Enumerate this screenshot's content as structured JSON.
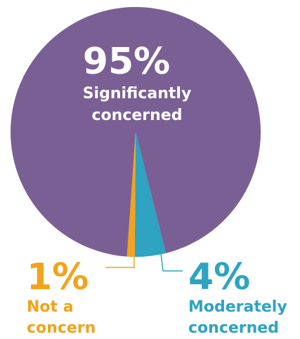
{
  "chart_data": {
    "type": "pie",
    "slices": [
      {
        "label": "Significantly concerned",
        "label_lines": [
          "Significantly",
          "concerned"
        ],
        "value": 95,
        "value_label": "95%",
        "color": "#7a5f94"
      },
      {
        "label": "Moderately concerned",
        "label_lines": [
          "Moderately",
          "concerned"
        ],
        "value": 4,
        "value_label": "4%",
        "color": "#2ea3c2"
      },
      {
        "label": "Not a concern",
        "label_lines": [
          "Not a",
          "concern"
        ],
        "value": 1,
        "value_label": "1%",
        "color": "#f2a31c"
      }
    ],
    "title": "",
    "legend": "none"
  }
}
